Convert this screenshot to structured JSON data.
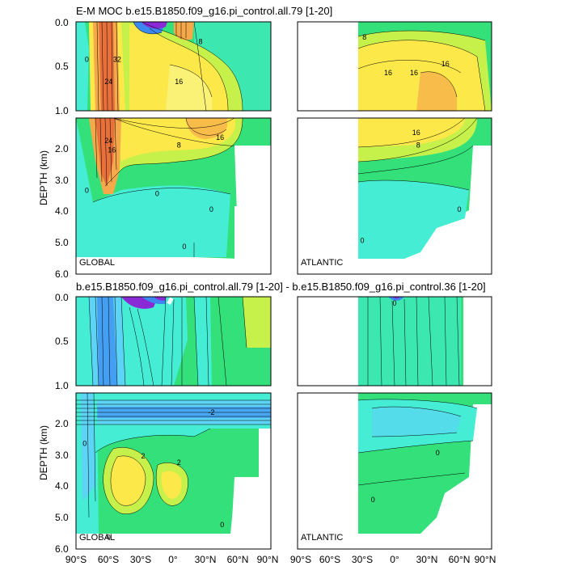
{
  "figure": {
    "title_top": "E-M MOC  b.e15.B1850.f09_g16.pi_control.all.79 [1-20]",
    "title_bottom": "b.e15.B1850.f09_g16.pi_control.all.79 [1-20] - b.e15.B1850.f09_g16.pi_control.36 [1-20]",
    "y_axis_label": "DEPTH (km)",
    "upper_ticks": [
      "0.0",
      "0.5",
      "1.0"
    ],
    "lower_ticks": [
      "2.0",
      "3.0",
      "4.0",
      "5.0",
      "6.0"
    ],
    "global_x_ticks": [
      "90°S",
      "60°S",
      "30°S",
      "0°",
      "30°N",
      "60°N",
      "90°N"
    ],
    "atlantic_x_ticks": [
      "90°S",
      "60°S",
      "30°S",
      "0°",
      "30°N",
      "60°N",
      "90°N"
    ],
    "panel_label_global": "GLOBAL",
    "panel_label_atlantic": "ATLANTIC",
    "colors": {
      "deep_orange": "#e8703a",
      "orange": "#f5a94a",
      "yellow": "#fde84a",
      "light_yellow": "#f8f58a",
      "yellow_green": "#c6f04a",
      "green": "#33e07a",
      "cyan": "#45edd4",
      "light_blue": "#5dd4f5",
      "blue": "#3a88f0",
      "purple": "#8a2ad6"
    }
  },
  "chart_data": [
    {
      "type": "heatmap",
      "title": "E-M MOC  b.e15.B1850.f09_g16.pi_control.all.79 [1-20]",
      "ylabel": "DEPTH (km)",
      "panel": "GLOBAL",
      "xlim": [
        -90,
        90
      ],
      "ylim": [
        6.0,
        0.0
      ],
      "contour_labels": [
        {
          "value": "32",
          "x": -52,
          "y": 0.45
        },
        {
          "value": "24",
          "x": -60,
          "y": 0.7
        },
        {
          "value": "16",
          "x": 5,
          "y": 0.7
        },
        {
          "value": "8",
          "x": 25,
          "y": 0.25
        },
        {
          "value": "16",
          "x": 43,
          "y": 1.7
        },
        {
          "value": "8",
          "x": 5,
          "y": 1.95
        },
        {
          "value": "24",
          "x": -60,
          "y": 1.8
        },
        {
          "value": "16",
          "x": -57,
          "y": 2.1
        },
        {
          "value": "0",
          "x": -80,
          "y": 0.45
        },
        {
          "value": "0",
          "x": -80,
          "y": 3.4
        },
        {
          "value": "0",
          "x": -15,
          "y": 3.5
        },
        {
          "value": "0",
          "x": 35,
          "y": 4.0
        },
        {
          "value": "0",
          "x": 10,
          "y": 5.2
        }
      ]
    },
    {
      "type": "heatmap",
      "panel": "ATLANTIC",
      "xlim": [
        -90,
        90
      ],
      "ylim": [
        6.0,
        0.0
      ],
      "contour_labels": [
        {
          "value": "8",
          "x": -28,
          "y": 0.2
        },
        {
          "value": "16",
          "x": -6,
          "y": 0.6
        },
        {
          "value": "16",
          "x": 18,
          "y": 0.6
        },
        {
          "value": "16",
          "x": 47,
          "y": 0.5
        },
        {
          "value": "16",
          "x": 20,
          "y": 1.55
        },
        {
          "value": "8",
          "x": 22,
          "y": 1.95
        },
        {
          "value": "0",
          "x": -30,
          "y": 5.0
        },
        {
          "value": "0",
          "x": 60,
          "y": 4.0
        }
      ]
    },
    {
      "type": "heatmap",
      "title": "b.e15.B1850.f09_g16.pi_control.all.79 [1-20] - b.e15.B1850.f09_g16.pi_control.36 [1-20]",
      "ylabel": "DEPTH (km)",
      "panel": "GLOBAL",
      "xlim": [
        -90,
        90
      ],
      "ylim": [
        6.0,
        0.0
      ],
      "contour_labels": [
        {
          "value": "-2",
          "x": 35,
          "y": 1.7
        },
        {
          "value": "2",
          "x": -28,
          "y": 3.1
        },
        {
          "value": "2",
          "x": 5,
          "y": 3.3
        },
        {
          "value": "0",
          "x": -82,
          "y": 2.7
        },
        {
          "value": "0",
          "x": -60,
          "y": 5.7
        },
        {
          "value": "0",
          "x": 45,
          "y": 5.3
        }
      ]
    },
    {
      "type": "heatmap",
      "panel": "ATLANTIC",
      "xlim": [
        -90,
        90
      ],
      "ylim": [
        6.0,
        0.0
      ],
      "contour_labels": [
        {
          "value": "0",
          "x": 0,
          "y": 0.1
        },
        {
          "value": "0",
          "x": 40,
          "y": 3.0
        },
        {
          "value": "0",
          "x": -20,
          "y": 4.5
        }
      ]
    }
  ]
}
